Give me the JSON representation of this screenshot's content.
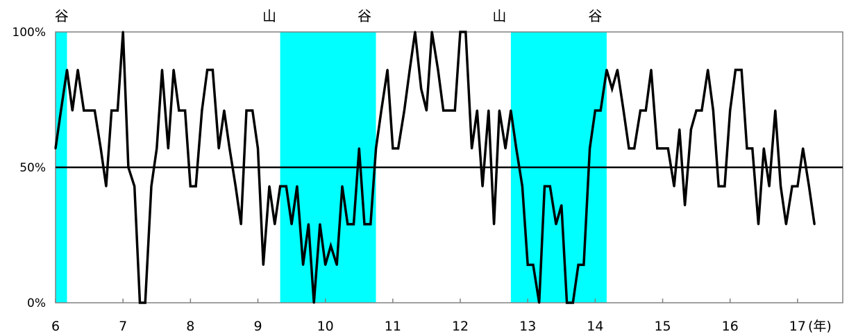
{
  "chart_data": {
    "type": "line",
    "x_unit": "(年)",
    "x_ticks": [
      6,
      7,
      8,
      9,
      10,
      11,
      12,
      13,
      14,
      15,
      16,
      17
    ],
    "y_ticks": [
      "0%",
      "50%",
      "100%"
    ],
    "ylim": [
      0,
      100
    ],
    "xlim": [
      6,
      17.67
    ],
    "reference_line": 50,
    "grid": false,
    "recession_shading": [
      [
        6.0,
        6.17
      ],
      [
        9.33,
        10.75
      ],
      [
        12.75,
        14.17
      ]
    ],
    "phase_markers": [
      {
        "label": "谷",
        "x": 6.09
      },
      {
        "label": "山",
        "x": 9.17
      },
      {
        "label": "谷",
        "x": 10.58
      },
      {
        "label": "山",
        "x": 12.58
      },
      {
        "label": "谷",
        "x": 14.0
      }
    ],
    "series": [
      {
        "values": [
          [
            6.0,
            57
          ],
          [
            6.08,
            71
          ],
          [
            6.17,
            86
          ],
          [
            6.25,
            71
          ],
          [
            6.33,
            86
          ],
          [
            6.42,
            71
          ],
          [
            6.5,
            71
          ],
          [
            6.58,
            71
          ],
          [
            6.67,
            57
          ],
          [
            6.75,
            43
          ],
          [
            6.83,
            71
          ],
          [
            6.92,
            71
          ],
          [
            7.0,
            100
          ],
          [
            7.08,
            50
          ],
          [
            7.17,
            43
          ],
          [
            7.25,
            0
          ],
          [
            7.33,
            0
          ],
          [
            7.42,
            43
          ],
          [
            7.5,
            57
          ],
          [
            7.58,
            86
          ],
          [
            7.67,
            57
          ],
          [
            7.75,
            86
          ],
          [
            7.83,
            71
          ],
          [
            7.92,
            71
          ],
          [
            8.0,
            43
          ],
          [
            8.08,
            43
          ],
          [
            8.17,
            71
          ],
          [
            8.25,
            86
          ],
          [
            8.33,
            86
          ],
          [
            8.42,
            57
          ],
          [
            8.5,
            71
          ],
          [
            8.58,
            57
          ],
          [
            8.67,
            43
          ],
          [
            8.75,
            29
          ],
          [
            8.83,
            71
          ],
          [
            8.92,
            71
          ],
          [
            9.0,
            57
          ],
          [
            9.08,
            14
          ],
          [
            9.17,
            43
          ],
          [
            9.25,
            29
          ],
          [
            9.33,
            43
          ],
          [
            9.42,
            43
          ],
          [
            9.5,
            29
          ],
          [
            9.58,
            43
          ],
          [
            9.67,
            14
          ],
          [
            9.75,
            29
          ],
          [
            9.83,
            0
          ],
          [
            9.92,
            29
          ],
          [
            10.0,
            14
          ],
          [
            10.08,
            21
          ],
          [
            10.17,
            14
          ],
          [
            10.25,
            43
          ],
          [
            10.33,
            29
          ],
          [
            10.42,
            29
          ],
          [
            10.5,
            57
          ],
          [
            10.58,
            29
          ],
          [
            10.67,
            29
          ],
          [
            10.75,
            57
          ],
          [
            10.83,
            71
          ],
          [
            10.92,
            86
          ],
          [
            11.0,
            57
          ],
          [
            11.08,
            57
          ],
          [
            11.17,
            71
          ],
          [
            11.25,
            86
          ],
          [
            11.33,
            100
          ],
          [
            11.42,
            79
          ],
          [
            11.5,
            71
          ],
          [
            11.58,
            100
          ],
          [
            11.67,
            86
          ],
          [
            11.75,
            71
          ],
          [
            11.83,
            71
          ],
          [
            11.92,
            71
          ],
          [
            12.0,
            100
          ],
          [
            12.08,
            100
          ],
          [
            12.17,
            57
          ],
          [
            12.25,
            71
          ],
          [
            12.33,
            43
          ],
          [
            12.42,
            71
          ],
          [
            12.5,
            29
          ],
          [
            12.58,
            71
          ],
          [
            12.67,
            57
          ],
          [
            12.75,
            71
          ],
          [
            12.83,
            57
          ],
          [
            12.92,
            43
          ],
          [
            13.0,
            14
          ],
          [
            13.08,
            14
          ],
          [
            13.17,
            0
          ],
          [
            13.25,
            43
          ],
          [
            13.33,
            43
          ],
          [
            13.42,
            29
          ],
          [
            13.5,
            36
          ],
          [
            13.58,
            0
          ],
          [
            13.67,
            0
          ],
          [
            13.75,
            14
          ],
          [
            13.83,
            14
          ],
          [
            13.92,
            57
          ],
          [
            14.0,
            71
          ],
          [
            14.08,
            71
          ],
          [
            14.17,
            86
          ],
          [
            14.25,
            79
          ],
          [
            14.33,
            86
          ],
          [
            14.42,
            71
          ],
          [
            14.5,
            57
          ],
          [
            14.58,
            57
          ],
          [
            14.67,
            71
          ],
          [
            14.75,
            71
          ],
          [
            14.83,
            86
          ],
          [
            14.92,
            57
          ],
          [
            15.0,
            57
          ],
          [
            15.08,
            57
          ],
          [
            15.17,
            43
          ],
          [
            15.25,
            64
          ],
          [
            15.33,
            36
          ],
          [
            15.42,
            64
          ],
          [
            15.5,
            71
          ],
          [
            15.58,
            71
          ],
          [
            15.67,
            86
          ],
          [
            15.75,
            71
          ],
          [
            15.83,
            43
          ],
          [
            15.92,
            43
          ],
          [
            16.0,
            71
          ],
          [
            16.08,
            86
          ],
          [
            16.17,
            86
          ],
          [
            16.25,
            57
          ],
          [
            16.33,
            57
          ],
          [
            16.42,
            29
          ],
          [
            16.5,
            57
          ],
          [
            16.58,
            43
          ],
          [
            16.67,
            71
          ],
          [
            16.75,
            43
          ],
          [
            16.83,
            29
          ],
          [
            16.92,
            43
          ],
          [
            17.0,
            43
          ],
          [
            17.08,
            57
          ],
          [
            17.17,
            43
          ],
          [
            17.25,
            29
          ]
        ]
      }
    ]
  },
  "colors": {
    "shading": "#00FFFF",
    "line": "#000000",
    "frame": "#808080",
    "background": "#FFFFFF"
  }
}
